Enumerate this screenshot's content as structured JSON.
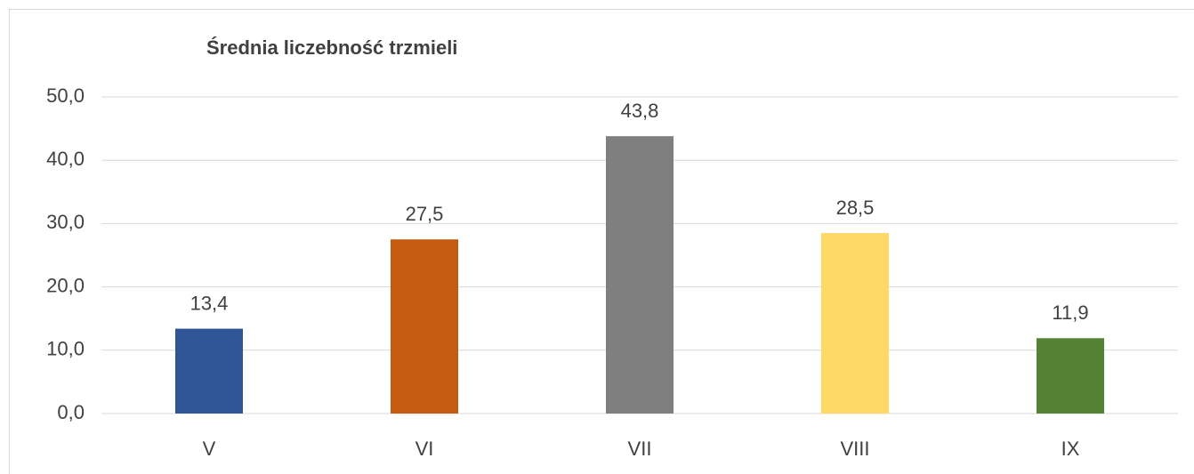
{
  "chart_data": {
    "type": "bar",
    "title": "Średnia liczebność trzmieli",
    "categories": [
      "V",
      "VI",
      "VII",
      "VIII",
      "IX"
    ],
    "values": [
      13.4,
      27.5,
      43.8,
      28.5,
      11.9
    ],
    "value_labels": [
      "13,4",
      "27,5",
      "43,8",
      "28,5",
      "11,9"
    ],
    "colors": [
      "#2f5597",
      "#c55a11",
      "#7f7f7f",
      "#ffd966",
      "#548235"
    ],
    "ylim": [
      0,
      50
    ],
    "yticks": [
      {
        "value": 0,
        "label": "0,0"
      },
      {
        "value": 10,
        "label": "10,0"
      },
      {
        "value": 20,
        "label": "20,0"
      },
      {
        "value": 30,
        "label": "30,0"
      },
      {
        "value": 40,
        "label": "40,0"
      },
      {
        "value": 50,
        "label": "50,0"
      }
    ],
    "grid": true
  }
}
